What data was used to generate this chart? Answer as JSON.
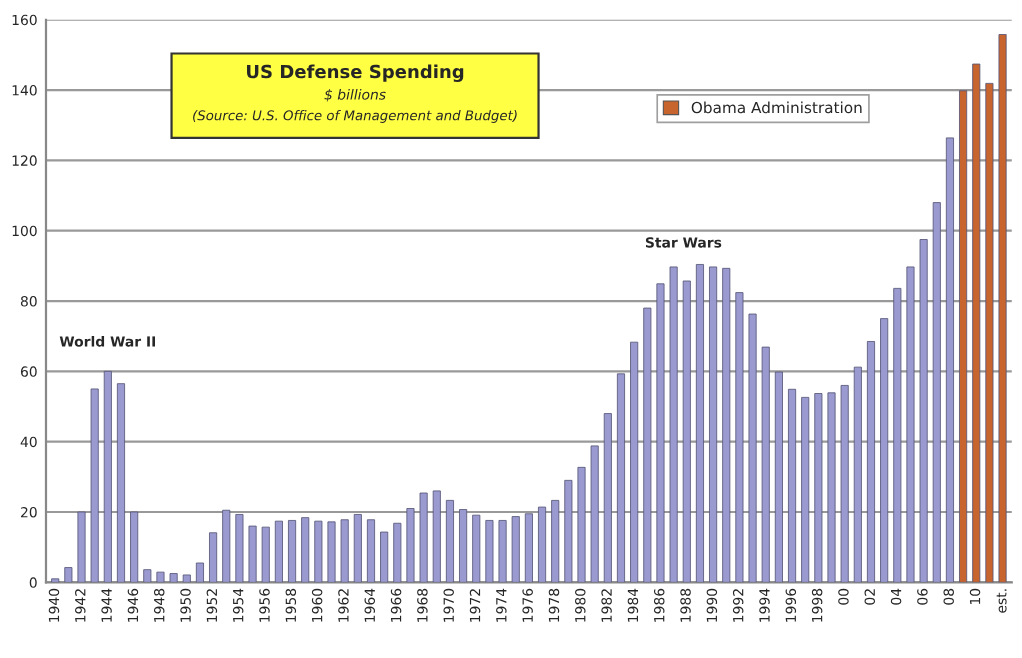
{
  "chart_data": {
    "type": "bar",
    "title": "US Defense Spending",
    "subtitle": "$ billions",
    "annotations": [
      "(Source: U.S. Office of Management and Budget)",
      "World War II",
      "Star Wars"
    ],
    "categories": [
      "1940",
      null,
      "1942",
      null,
      "1944",
      null,
      "1946",
      null,
      "1948",
      null,
      "1950",
      null,
      "1952",
      null,
      "1954",
      null,
      "1956",
      null,
      "1958",
      null,
      "1960",
      null,
      "1962",
      null,
      "1964",
      null,
      "1966",
      null,
      "1968",
      null,
      "1970",
      null,
      "1972",
      null,
      "1974",
      null,
      "1976",
      null,
      "1978",
      null,
      "1980",
      null,
      "1982",
      null,
      "1984",
      null,
      "1986",
      null,
      "1988",
      null,
      "1990",
      null,
      "1992",
      null,
      "1994",
      null,
      "1996",
      null,
      "1998",
      null,
      "00",
      null,
      "02",
      null,
      "04",
      null,
      "06",
      null,
      "08",
      null,
      "10",
      null,
      "est."
    ],
    "series": [
      {
        "color": "#9a9ad0",
        "values": [
          1,
          4.2,
          20,
          55,
          60,
          56.5,
          20,
          3.6,
          2.9,
          2.5,
          2.1,
          5.5,
          14.1,
          20.5,
          19.3,
          16,
          15.7,
          17.4,
          17.6,
          18.4,
          17.4,
          17.2,
          17.8,
          19.3,
          17.8,
          14.3,
          16.8,
          21,
          25.4,
          26,
          23.3,
          20.7,
          19.1,
          17.6,
          17.6,
          18.7,
          19.5,
          21.4,
          23.3,
          29,
          32.7,
          38.8,
          48,
          59.3,
          68.3,
          78,
          84.9,
          89.7,
          85.7,
          90.4,
          89.7,
          89.3,
          82.4,
          76.3,
          66.9,
          59.8,
          54.9,
          52.6,
          53.7,
          53.9,
          56,
          61.2,
          68.5,
          75,
          83.6,
          89.7,
          97.5,
          108,
          126.4,
          null,
          null,
          null,
          null
        ]
      },
      {
        "name": "Obama Administration",
        "color": "#c8642e",
        "values": [
          null,
          null,
          null,
          null,
          null,
          null,
          null,
          null,
          null,
          null,
          null,
          null,
          null,
          null,
          null,
          null,
          null,
          null,
          null,
          null,
          null,
          null,
          null,
          null,
          null,
          null,
          null,
          null,
          null,
          null,
          null,
          null,
          null,
          null,
          null,
          null,
          null,
          null,
          null,
          null,
          null,
          null,
          null,
          null,
          null,
          null,
          null,
          null,
          null,
          null,
          null,
          null,
          null,
          null,
          null,
          null,
          null,
          null,
          null,
          null,
          null,
          null,
          null,
          null,
          null,
          null,
          null,
          null,
          null,
          139.8,
          147.4,
          141.9,
          155.8
        ]
      }
    ],
    "ylim": [
      0,
      160
    ],
    "yticks": [
      0,
      20,
      40,
      60,
      80,
      100,
      120,
      140,
      160
    ],
    "grid": "y",
    "legend": "top right"
  }
}
